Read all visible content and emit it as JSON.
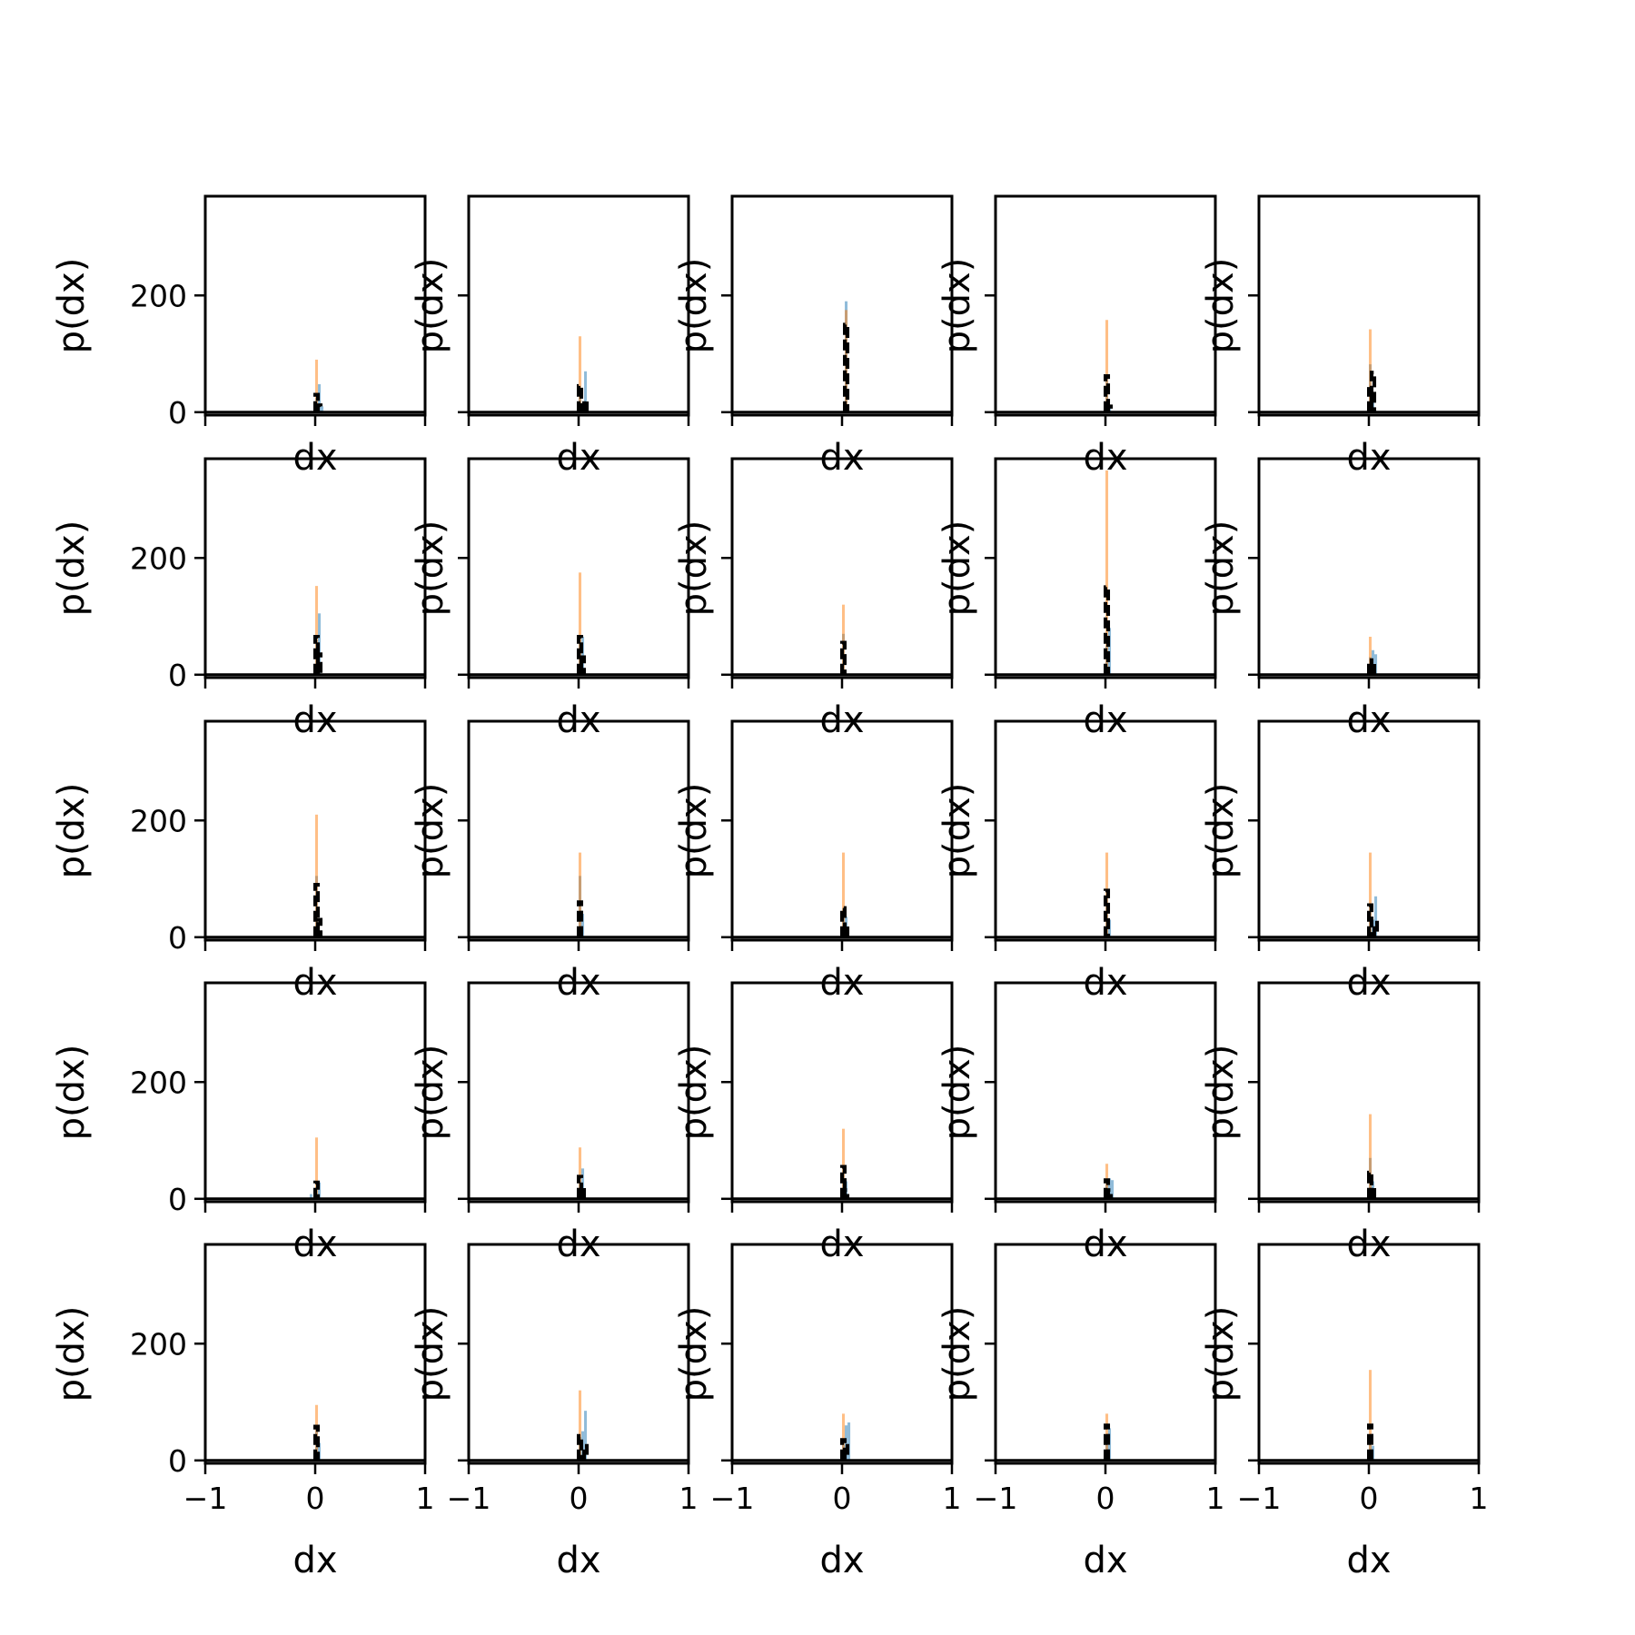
{
  "chart_data": {
    "type": "histogram-grid",
    "rows": 5,
    "cols": 5,
    "sharex": true,
    "sharey": true,
    "xlabel": "dx",
    "ylabel": "p(dx)",
    "xlim": [
      -1,
      1
    ],
    "ylim": [
      -5,
      370
    ],
    "xticks": [
      -1,
      0,
      1
    ],
    "xtick_labels": [
      "−1",
      "0",
      "1"
    ],
    "yticks": [
      0,
      200
    ],
    "ytick_labels": [
      "0",
      "200"
    ],
    "bin_width": 0.025,
    "colors": {
      "series_blue": "#1f77b4",
      "series_orange": "#ff7f0e",
      "dashed": "#000000"
    },
    "panels": [
      {
        "blue": [
          [
            0.0,
            25
          ],
          [
            0.025,
            48
          ],
          [
            0.05,
            10
          ]
        ],
        "orange": [
          [
            0.0,
            90
          ]
        ],
        "dashed": [
          [
            0.0,
            30
          ],
          [
            0.025,
            12
          ]
        ]
      },
      {
        "blue": [
          [
            0.0,
            25
          ],
          [
            0.05,
            70
          ]
        ],
        "orange": [
          [
            0.0,
            130
          ]
        ],
        "dashed": [
          [
            0.0,
            45
          ],
          [
            0.05,
            20
          ]
        ]
      },
      {
        "blue": [
          [
            0.025,
            190
          ]
        ],
        "orange": [
          [
            0.025,
            175
          ]
        ],
        "dashed": [
          [
            0.025,
            150
          ]
        ]
      },
      {
        "blue": [
          [
            0.0,
            60
          ],
          [
            0.025,
            10
          ]
        ],
        "orange": [
          [
            0.0,
            158
          ]
        ],
        "dashed": [
          [
            0.0,
            62
          ],
          [
            0.025,
            10
          ]
        ]
      },
      {
        "blue": [
          [
            0.0,
            82
          ],
          [
            0.025,
            30
          ]
        ],
        "orange": [
          [
            0.0,
            142
          ]
        ],
        "dashed": [
          [
            0.0,
            40
          ],
          [
            0.025,
            68
          ]
        ]
      },
      {
        "blue": [
          [
            0.0,
            60
          ],
          [
            0.025,
            105
          ]
        ],
        "orange": [
          [
            0.0,
            152
          ]
        ],
        "dashed": [
          [
            0.0,
            65
          ],
          [
            0.025,
            35
          ]
        ]
      },
      {
        "blue": [
          [
            0.0,
            55
          ],
          [
            0.025,
            65
          ]
        ],
        "orange": [
          [
            0.0,
            175
          ]
        ],
        "dashed": [
          [
            0.0,
            65
          ],
          [
            0.025,
            30
          ]
        ]
      },
      {
        "blue": [
          [
            0.0,
            70
          ]
        ],
        "orange": [
          [
            0.0,
            120
          ]
        ],
        "dashed": [
          [
            0.0,
            55
          ]
        ]
      },
      {
        "blue": [
          [
            0.0,
            50
          ],
          [
            0.025,
            80
          ]
        ],
        "orange": [
          [
            0.0,
            350
          ]
        ],
        "dashed": [
          [
            0.0,
            150
          ]
        ]
      },
      {
        "blue": [
          [
            0.0,
            30
          ],
          [
            0.025,
            42
          ],
          [
            0.05,
            35
          ]
        ],
        "orange": [
          [
            0.0,
            65
          ]
        ],
        "dashed": [
          [
            0.0,
            25
          ],
          [
            0.025,
            20
          ]
        ]
      },
      {
        "blue": [
          [
            0.0,
            105
          ]
        ],
        "orange": [
          [
            0.0,
            210
          ]
        ],
        "dashed": [
          [
            0.0,
            90
          ],
          [
            0.025,
            30
          ]
        ]
      },
      {
        "blue": [
          [
            0.0,
            105
          ],
          [
            0.025,
            40
          ]
        ],
        "orange": [
          [
            0.0,
            145
          ]
        ],
        "dashed": [
          [
            0.0,
            60
          ]
        ]
      },
      {
        "blue": [
          [
            0.0,
            50
          ],
          [
            0.025,
            35
          ]
        ],
        "orange": [
          [
            0.0,
            145
          ]
        ],
        "dashed": [
          [
            0.0,
            50
          ],
          [
            0.025,
            20
          ]
        ]
      },
      {
        "blue": [
          [
            0.0,
            70
          ],
          [
            0.025,
            30
          ]
        ],
        "orange": [
          [
            0.0,
            145
          ]
        ],
        "dashed": [
          [
            0.0,
            80
          ]
        ]
      },
      {
        "blue": [
          [
            0.0,
            55
          ],
          [
            0.025,
            30
          ],
          [
            0.05,
            70
          ]
        ],
        "orange": [
          [
            0.0,
            145
          ]
        ],
        "dashed": [
          [
            0.0,
            55
          ],
          [
            0.05,
            25
          ]
        ]
      },
      {
        "blue": [
          [
            -0.05,
            8
          ],
          [
            0.0,
            20
          ],
          [
            0.025,
            28
          ]
        ],
        "orange": [
          [
            0.0,
            105
          ]
        ],
        "dashed": [
          [
            0.0,
            28
          ]
        ]
      },
      {
        "blue": [
          [
            0.0,
            30
          ],
          [
            0.025,
            52
          ]
        ],
        "orange": [
          [
            0.0,
            88
          ]
        ],
        "dashed": [
          [
            0.0,
            38
          ],
          [
            0.025,
            20
          ]
        ]
      },
      {
        "blue": [
          [
            0.0,
            55
          ],
          [
            0.025,
            30
          ]
        ],
        "orange": [
          [
            0.0,
            120
          ]
        ],
        "dashed": [
          [
            0.0,
            55
          ],
          [
            0.025,
            15
          ]
        ]
      },
      {
        "blue": [
          [
            0.0,
            30
          ],
          [
            0.025,
            35
          ],
          [
            0.05,
            32
          ]
        ],
        "orange": [
          [
            0.0,
            60
          ]
        ],
        "dashed": [
          [
            0.0,
            32
          ],
          [
            0.025,
            15
          ]
        ]
      },
      {
        "blue": [
          [
            0.0,
            70
          ],
          [
            0.025,
            30
          ]
        ],
        "orange": [
          [
            0.0,
            145
          ]
        ],
        "dashed": [
          [
            0.0,
            45
          ],
          [
            0.025,
            20
          ]
        ]
      },
      {
        "blue": [
          [
            0.0,
            55
          ],
          [
            0.025,
            30
          ]
        ],
        "orange": [
          [
            0.0,
            95
          ]
        ],
        "dashed": [
          [
            0.0,
            58
          ]
        ]
      },
      {
        "blue": [
          [
            0.0,
            40
          ],
          [
            0.025,
            50
          ],
          [
            0.05,
            85
          ]
        ],
        "orange": [
          [
            0.0,
            120
          ]
        ],
        "dashed": [
          [
            0.0,
            42
          ],
          [
            0.05,
            25
          ]
        ]
      },
      {
        "blue": [
          [
            0.0,
            30
          ],
          [
            0.025,
            60
          ],
          [
            0.05,
            65
          ]
        ],
        "orange": [
          [
            0.0,
            80
          ]
        ],
        "dashed": [
          [
            0.0,
            35
          ],
          [
            0.025,
            25
          ]
        ]
      },
      {
        "blue": [
          [
            0.0,
            30
          ],
          [
            0.025,
            55
          ]
        ],
        "orange": [
          [
            0.0,
            80
          ]
        ],
        "dashed": [
          [
            0.0,
            60
          ]
        ]
      },
      {
        "blue": [
          [
            0.0,
            40
          ],
          [
            0.025,
            25
          ]
        ],
        "orange": [
          [
            0.0,
            155
          ]
        ],
        "dashed": [
          [
            0.0,
            60
          ]
        ]
      }
    ]
  }
}
